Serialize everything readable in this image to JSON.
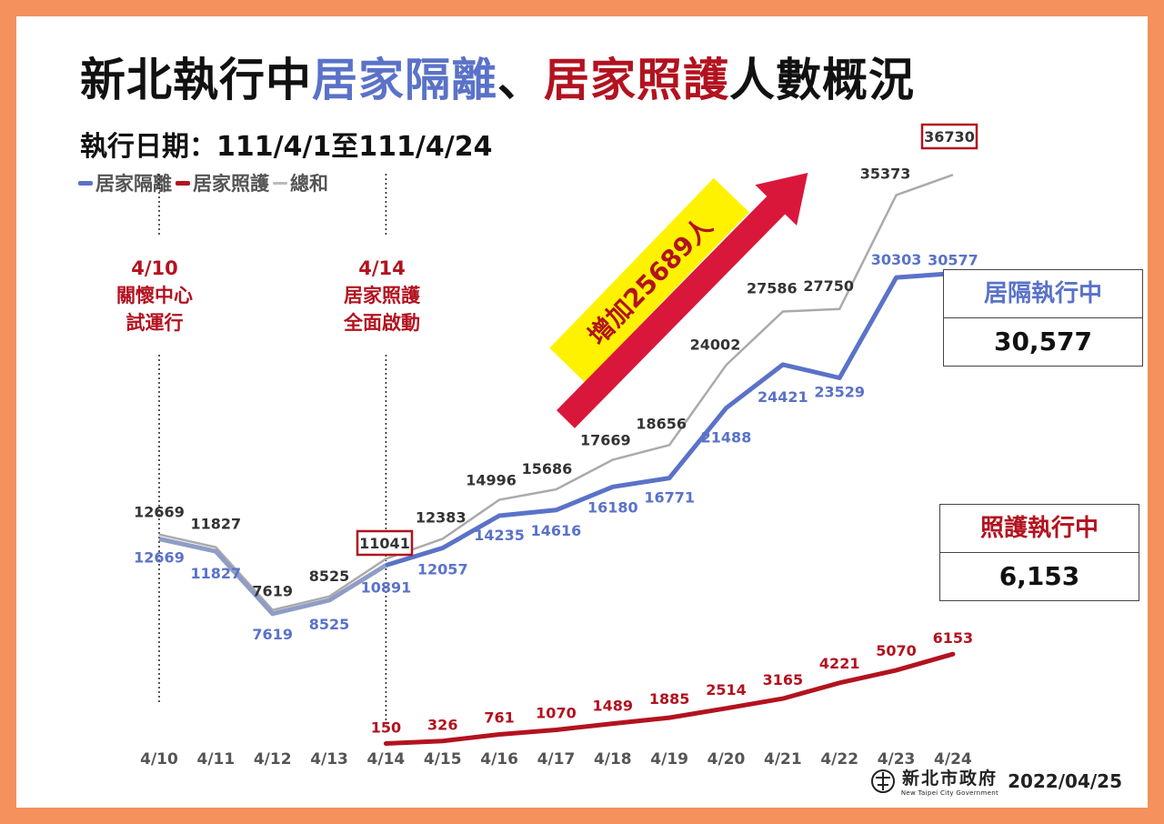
{
  "title": {
    "part1": "新北執行中",
    "part2": "居家隔離",
    "part3": "、",
    "part4": "居家照護",
    "part5": "人數概況"
  },
  "date_line": "執行日期：111/4/1至111/4/24",
  "legend": {
    "blue": "居家隔離",
    "red": "居家照護",
    "gray": "總和"
  },
  "notes": {
    "n1": "4/10\n關懷中心\n試運行",
    "n2": "4/14\n居家照護\n全面啟動"
  },
  "arrow_label": "增加25689人",
  "boxes": {
    "isolation": {
      "header": "居隔執行中",
      "value": "30,577"
    },
    "care": {
      "header": "照護執行中",
      "value": "6,153"
    }
  },
  "footer": {
    "org": "新北市政府",
    "org_en": "New Taipei City Government",
    "date": "2022/04/25"
  },
  "colors": {
    "isolation": "#5a72c8",
    "care": "#b3121f",
    "total": "#aaaaaa",
    "background": "#f4915c",
    "arrow": "#d9173b",
    "banner": "#fff200"
  },
  "chart_data": {
    "type": "line",
    "categories": [
      "4/10",
      "4/11",
      "4/12",
      "4/13",
      "4/14",
      "4/15",
      "4/16",
      "4/17",
      "4/18",
      "4/19",
      "4/20",
      "4/21",
      "4/22",
      "4/23",
      "4/24"
    ],
    "series": [
      {
        "name": "居家隔離",
        "values": [
          12669,
          11827,
          7619,
          8525,
          10891,
          12057,
          14235,
          14616,
          16180,
          16771,
          21488,
          24421,
          23529,
          30303,
          30577
        ]
      },
      {
        "name": "居家照護",
        "values": [
          null,
          null,
          null,
          null,
          150,
          326,
          761,
          1070,
          1489,
          1885,
          2514,
          3165,
          4221,
          5070,
          6153
        ]
      },
      {
        "name": "總和",
        "values": [
          12669,
          11827,
          7619,
          8525,
          11041,
          12383,
          14996,
          15686,
          17669,
          18656,
          24002,
          27586,
          27750,
          35373,
          36730
        ]
      }
    ],
    "highlighted": [
      "11041",
      "36730"
    ]
  }
}
